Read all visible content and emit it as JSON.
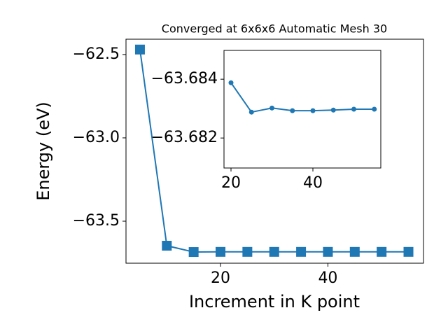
{
  "chart_data": [
    {
      "type": "line",
      "title": "Converged at 6x6x6 Automatic Mesh 30",
      "x_label": "Increment in K point",
      "y_label": "Energy (eV)",
      "x": [
        5,
        10,
        15,
        20,
        25,
        30,
        35,
        40,
        45,
        50,
        55
      ],
      "series": [
        {
          "color": "#1f77b4",
          "marker": "square",
          "values": [
            -62.47,
            -63.647,
            -63.685,
            -63.684,
            -63.684,
            -63.684,
            -63.684,
            -63.684,
            -63.684,
            -63.684,
            -63.684
          ]
        }
      ],
      "xlim": [
        2.4,
        57.8
      ],
      "ylim": [
        -63.752,
        -62.408
      ],
      "xticks": [
        20,
        40
      ],
      "yticks": [
        {
          "value": -62.5,
          "label": "−62.5"
        },
        {
          "value": -63.0,
          "label": "−63.0"
        },
        {
          "value": -63.5,
          "label": "−63.5"
        }
      ]
    },
    {
      "type": "line",
      "x": [
        20,
        25,
        30,
        35,
        40,
        45,
        50,
        55
      ],
      "series": [
        {
          "color": "#1f77b4",
          "marker": "circle",
          "values": [
            -63.68388,
            -63.68288,
            -63.68302,
            -63.68293,
            -63.68293,
            -63.68295,
            -63.68298,
            -63.68298
          ]
        }
      ],
      "xlim": [
        18.29,
        56.58
      ],
      "ylim": [
        -63.68098,
        -63.68498
      ],
      "xticks": [
        20,
        40
      ],
      "yticks": [
        {
          "value": -63.684,
          "label": "−63.684"
        },
        {
          "value": -63.682,
          "label": "−63.682"
        }
      ]
    }
  ]
}
